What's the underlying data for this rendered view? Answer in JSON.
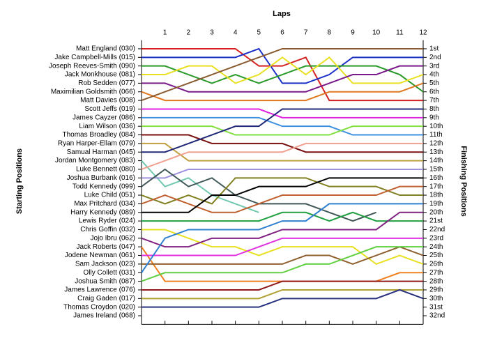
{
  "chart_data": {
    "type": "line",
    "title": "Laps",
    "y_label": "Starting Positions",
    "y2_label": "Finishing Positions",
    "x": [
      0,
      1,
      2,
      3,
      4,
      5,
      6,
      7,
      8,
      9,
      10,
      11,
      12
    ],
    "xlim": [
      0,
      12
    ],
    "xticks": [
      1,
      2,
      3,
      4,
      5,
      6,
      7,
      8,
      9,
      10,
      11,
      12
    ],
    "ylim": [
      0,
      33
    ],
    "inverted": true,
    "y2ticks": [
      {
        "value": 1,
        "label": "1st"
      },
      {
        "value": 2,
        "label": "2nd"
      },
      {
        "value": 3,
        "label": "3rd"
      },
      {
        "value": 4,
        "label": "4th"
      },
      {
        "value": 5,
        "label": "5th"
      },
      {
        "value": 6,
        "label": "6th"
      },
      {
        "value": 7,
        "label": "7th"
      },
      {
        "value": 8,
        "label": "8th"
      },
      {
        "value": 9,
        "label": "9th"
      },
      {
        "value": 10,
        "label": "10th"
      },
      {
        "value": 11,
        "label": "11th"
      },
      {
        "value": 12,
        "label": "12th"
      },
      {
        "value": 13,
        "label": "13th"
      },
      {
        "value": 14,
        "label": "14th"
      },
      {
        "value": 15,
        "label": "15th"
      },
      {
        "value": 16,
        "label": "16th"
      },
      {
        "value": 17,
        "label": "17th"
      },
      {
        "value": 18,
        "label": "18th"
      },
      {
        "value": 19,
        "label": "19th"
      },
      {
        "value": 20,
        "label": "20th"
      },
      {
        "value": 21,
        "label": "21st"
      },
      {
        "value": 22,
        "label": "22nd"
      },
      {
        "value": 23,
        "label": "23rd"
      },
      {
        "value": 24,
        "label": "24th"
      },
      {
        "value": 25,
        "label": "25th"
      },
      {
        "value": 26,
        "label": "26th"
      },
      {
        "value": 27,
        "label": "27th"
      },
      {
        "value": 28,
        "label": "28th"
      },
      {
        "value": 29,
        "label": "29th"
      },
      {
        "value": 30,
        "label": "30th"
      },
      {
        "value": 31,
        "label": "31st"
      },
      {
        "value": 32,
        "label": "32nd"
      }
    ],
    "series": [
      {
        "name": "Matt England (030)",
        "color": "#d42020",
        "values": [
          1,
          1,
          1,
          1,
          1,
          3,
          3,
          2,
          7,
          7,
          7,
          7,
          7
        ]
      },
      {
        "name": "Jake Campbell-Mills (015)",
        "color": "#1a2fc8",
        "values": [
          2,
          2,
          2,
          2,
          2,
          1,
          5,
          5,
          4,
          2,
          2,
          2,
          2
        ]
      },
      {
        "name": "Joseph Reeves-Smith (090)",
        "color": "#2a9a2a",
        "values": [
          3,
          3,
          4,
          5,
          4,
          5,
          4,
          3,
          3,
          3,
          3,
          4,
          6
        ]
      },
      {
        "name": "Jack Monkhouse (081)",
        "color": "#e8e020",
        "values": [
          4,
          4,
          3,
          3,
          5,
          4,
          2,
          4,
          2,
          5,
          5,
          5,
          4
        ]
      },
      {
        "name": "Rob Sedden (077)",
        "color": "#7a1a8a",
        "values": [
          5,
          5,
          6,
          6,
          6,
          6,
          6,
          6,
          5,
          4,
          4,
          3,
          3
        ]
      },
      {
        "name": "Maximilian Goldsmith (066)",
        "color": "#e07820",
        "values": [
          6,
          7,
          7,
          7,
          7,
          7,
          7,
          7,
          6,
          6,
          6,
          6,
          5
        ]
      },
      {
        "name": "Matt Davies (008)",
        "color": "#8a5a30",
        "values": [
          7,
          6,
          5,
          4,
          3,
          2,
          1,
          1,
          1,
          1,
          1,
          1,
          1
        ]
      },
      {
        "name": "Scott Jeffs (019)",
        "color": "#e020e0",
        "values": [
          8,
          8,
          8,
          8,
          8,
          8,
          9,
          9,
          9,
          9,
          9,
          9,
          9
        ]
      },
      {
        "name": "James Cayzer (086)",
        "color": "#4090e0",
        "values": [
          9,
          9,
          9,
          9,
          9,
          9,
          10,
          10,
          10,
          11,
          11,
          11,
          11
        ]
      },
      {
        "name": "Liam Wilson (036)",
        "color": "#80e040",
        "values": [
          10,
          10,
          10,
          10,
          11,
          11,
          11,
          11,
          11,
          10,
          10,
          10,
          10
        ]
      },
      {
        "name": "Thomas Broadley (084)",
        "color": "#7a1010",
        "values": [
          11,
          11,
          11,
          12,
          12,
          12,
          12,
          13,
          13,
          13,
          13,
          13,
          13
        ]
      },
      {
        "name": "Ryan Harper-Ellam (079)",
        "color": "#c0a040",
        "values": [
          12,
          12,
          14,
          14,
          14,
          14,
          14,
          14,
          14,
          14,
          14,
          14,
          14
        ]
      },
      {
        "name": "Samual Harman (045)",
        "color": "#202878",
        "values": [
          13,
          13,
          12,
          11,
          10,
          10,
          8,
          8,
          8,
          8,
          8,
          8,
          8
        ]
      },
      {
        "name": "Jordan Montgomery (083)",
        "color": "#70c8b0",
        "values": [
          14,
          17,
          16,
          18,
          19,
          20,
          null,
          null,
          null,
          null,
          null,
          null,
          null
        ]
      },
      {
        "name": "Luke Bennett (080)",
        "color": "#f0a090",
        "values": [
          15,
          14,
          13,
          13,
          13,
          13,
          13,
          12,
          12,
          12,
          12,
          12,
          12
        ]
      },
      {
        "name": "Joshua Burbank (016)",
        "color": "#a090e0",
        "values": [
          16,
          16,
          15,
          15,
          15,
          15,
          15,
          15,
          15,
          15,
          15,
          15,
          15
        ]
      },
      {
        "name": "Todd Kennedy (099)",
        "color": "#405858",
        "values": [
          17,
          15,
          17,
          16,
          18,
          19,
          19,
          19,
          20,
          21,
          20,
          null,
          null
        ]
      },
      {
        "name": "Luke Child (051)",
        "color": "#808020",
        "values": [
          18,
          19,
          18,
          19,
          16,
          16,
          16,
          16,
          17,
          17,
          17,
          18,
          18
        ]
      },
      {
        "name": "Max Pritchard (034)",
        "color": "#c06030",
        "values": [
          19,
          18,
          19,
          20,
          20,
          19,
          18,
          18,
          18,
          18,
          18,
          17,
          17
        ]
      },
      {
        "name": "Harry Kennedy (089)",
        "color": "#000000",
        "values": [
          20,
          20,
          20,
          18,
          18,
          17,
          17,
          17,
          16,
          16,
          16,
          16,
          16
        ]
      },
      {
        "name": "Lewis Ryder (024)",
        "color": "#20a040",
        "values": [
          21,
          21,
          21,
          21,
          21,
          21,
          20,
          20,
          21,
          20,
          21,
          21,
          21
        ]
      },
      {
        "name": "Chris Goffin (032)",
        "color": "#e8e020",
        "values": [
          22,
          22,
          23,
          24,
          24,
          25,
          24,
          24,
          24,
          24,
          26,
          25,
          26
        ]
      },
      {
        "name": "Jojo Ibru (062)",
        "color": "#802080",
        "values": [
          23,
          24,
          24,
          23,
          23,
          23,
          22,
          22,
          22,
          22,
          22,
          20,
          20
        ]
      },
      {
        "name": "Jack Roberts (047)",
        "color": "#f08020",
        "values": [
          24,
          28,
          28,
          28,
          28,
          28,
          28,
          28,
          28,
          28,
          28,
          27,
          27
        ]
      },
      {
        "name": "Jodene Newman (061)",
        "color": "#e030e0",
        "values": [
          25,
          25,
          25,
          25,
          25,
          24,
          23,
          23,
          23,
          23,
          23,
          23,
          23
        ]
      },
      {
        "name": "Sam Jackson (023)",
        "color": "#906030",
        "values": [
          26,
          26,
          26,
          26,
          26,
          26,
          26,
          25,
          25,
          26,
          25,
          24,
          25
        ]
      },
      {
        "name": "Olly Collett (031)",
        "color": "#3080d0",
        "values": [
          27,
          23,
          22,
          22,
          22,
          22,
          21,
          21,
          19,
          19,
          19,
          19,
          19
        ]
      },
      {
        "name": "Joshua Smith (087)",
        "color": "#60d040",
        "values": [
          28,
          27,
          27,
          27,
          27,
          27,
          27,
          26,
          26,
          25,
          24,
          24,
          24
        ]
      },
      {
        "name": "James Lawrence (076)",
        "color": "#901818",
        "values": [
          29,
          29,
          29,
          29,
          29,
          29,
          28,
          28,
          28,
          28,
          28,
          28,
          28
        ]
      },
      {
        "name": "Craig Gaden (017)",
        "color": "#b0a030",
        "values": [
          30,
          30,
          30,
          30,
          30,
          30,
          29,
          29,
          29,
          29,
          29,
          29,
          29
        ]
      },
      {
        "name": "Thomas Croydon (020)",
        "color": "#283080",
        "values": [
          31,
          31,
          31,
          31,
          31,
          31,
          30,
          30,
          30,
          30,
          30,
          29,
          30
        ]
      },
      {
        "name": "James Ireland (068)",
        "color": "#606060",
        "values": [
          32,
          null,
          null,
          null,
          null,
          null,
          null,
          null,
          null,
          null,
          null,
          null,
          null
        ]
      }
    ]
  }
}
